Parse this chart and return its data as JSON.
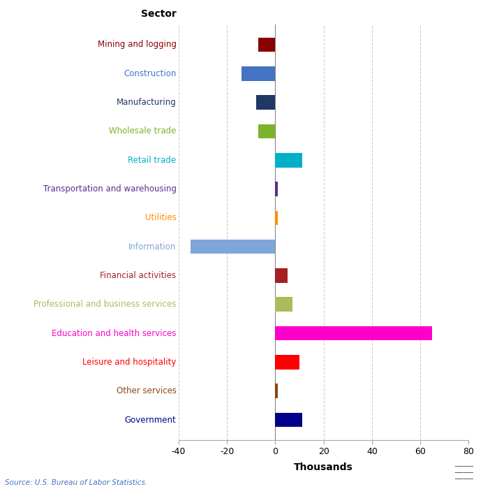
{
  "categories": [
    "Mining and logging",
    "Construction",
    "Manufacturing",
    "Wholesale trade",
    "Retail trade",
    "Transportation and warehousing",
    "Utilities",
    "Information",
    "Financial activities",
    "Professional and business services",
    "Education and health services",
    "Leisure and hospitality",
    "Other services",
    "Government"
  ],
  "values": [
    -7,
    -14,
    -8,
    -7,
    11,
    1,
    1,
    -35,
    5,
    7,
    65,
    10,
    1,
    11
  ],
  "bar_colors": [
    "#8B0000",
    "#4472C4",
    "#1F3864",
    "#7DB32A",
    "#00B0C8",
    "#5B2D8E",
    "#FF8C00",
    "#7EA6D9",
    "#A52020",
    "#AFBA5A",
    "#FF00CC",
    "#FF0000",
    "#8B4513",
    "#00008B"
  ],
  "label_colors": [
    "#8B0000",
    "#4472C4",
    "#1F3864",
    "#7DB32A",
    "#00B0C8",
    "#5B2D8E",
    "#FF8C00",
    "#7EA6D9",
    "#A52020",
    "#AFBA5A",
    "#FF00CC",
    "#FF0000",
    "#8B4513",
    "#00008B"
  ],
  "xlabel": "Thousands",
  "ylabel": "Sector",
  "xlim": [
    -40,
    80
  ],
  "xticks": [
    -40,
    -20,
    0,
    20,
    40,
    60,
    80
  ],
  "source": "Source: U.S. Bureau of Labor Statistics.",
  "background_color": "#FFFFFF",
  "grid_color": "#CCCCCC",
  "bar_height": 0.5,
  "label_fontsize": 8.5,
  "tick_fontsize": 9
}
